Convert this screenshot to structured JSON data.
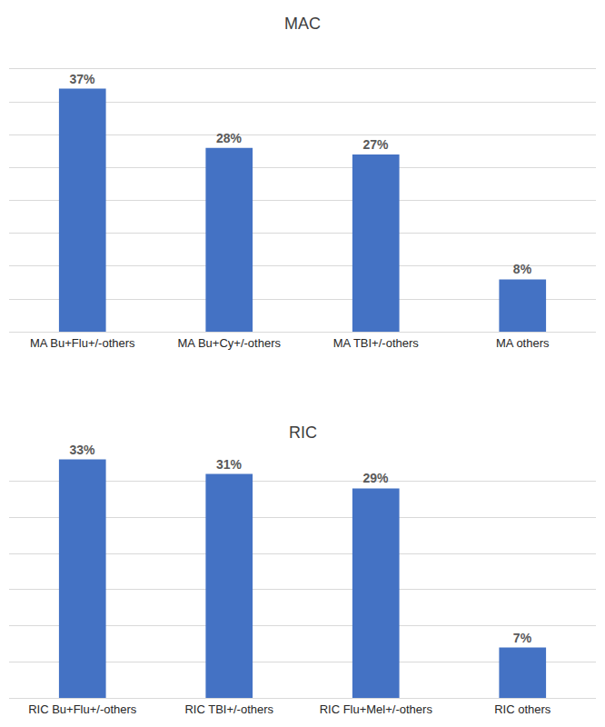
{
  "chart_data": [
    {
      "type": "bar",
      "title": "MAC",
      "categories": [
        "MA Bu+Flu+/-others",
        "MA Bu+Cy+/-others",
        "MA TBI+/-others",
        "MA others"
      ],
      "values": [
        37,
        28,
        27,
        8
      ],
      "value_labels": [
        "37%",
        "28%",
        "27%",
        "8%"
      ],
      "color": "#4472c4",
      "ylim": [
        0,
        45
      ],
      "yticks": [
        0,
        5,
        10,
        15,
        20,
        25,
        30,
        35,
        40,
        45
      ],
      "grid": true,
      "data_labels": true,
      "tick_labels": "x"
    },
    {
      "type": "bar",
      "title": "RIC",
      "categories": [
        "RIC Bu+Flu+/-others",
        "RIC TBI+/-others",
        "RIC Flu+Mel+/-others",
        "RIC others"
      ],
      "values": [
        33,
        31,
        29,
        7
      ],
      "value_labels": [
        "33%",
        "31%",
        "29%",
        "7%"
      ],
      "color": "#4472c4",
      "ylim": [
        0,
        35
      ],
      "yticks": [
        0,
        5,
        10,
        15,
        20,
        25,
        30,
        35
      ],
      "grid": true,
      "data_labels": true,
      "tick_labels": "x"
    }
  ]
}
